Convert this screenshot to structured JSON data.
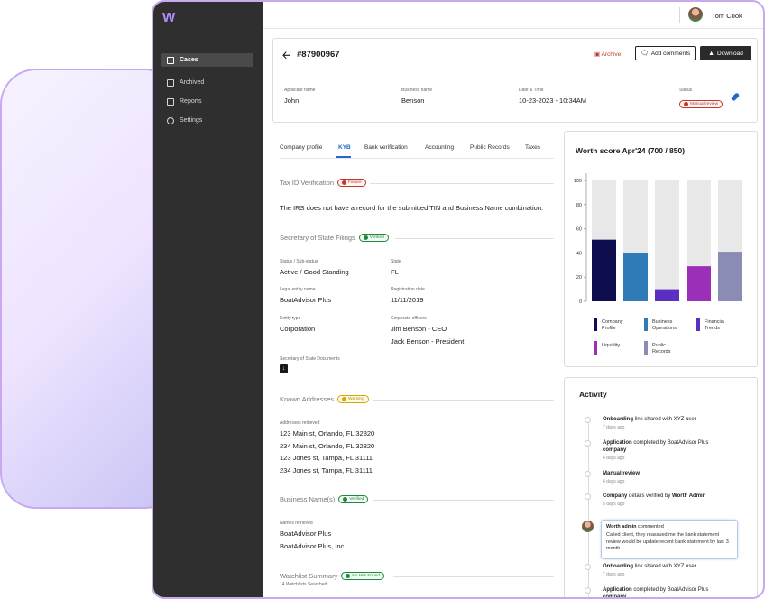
{
  "user": {
    "name": "Tom Cook"
  },
  "sidebar": {
    "items": [
      {
        "label": "Cases",
        "icon": "document-icon",
        "active": true
      },
      {
        "label": "Archived",
        "icon": "document-icon",
        "active": false
      },
      {
        "label": "Reports",
        "icon": "document-icon",
        "active": false
      },
      {
        "label": "Settings",
        "icon": "gear-icon",
        "active": false
      }
    ]
  },
  "case": {
    "id": "#87900967",
    "actions": {
      "archive": "Archive",
      "add_comments": "Add comments",
      "download": "Download"
    },
    "fields": {
      "applicant_label": "Applicant name",
      "applicant": "John",
      "business_label": "Business name",
      "business": "Benson",
      "date_label": "Date & Time",
      "date": "10-23-2023 - 10:34AM",
      "status_label": "Status",
      "status": "Manual review"
    }
  },
  "tabs": [
    "Company profile",
    "KYB",
    "Bank verification",
    "Accounting",
    "Public Records",
    "Taxes"
  ],
  "kyb": {
    "tax_id": {
      "title": "Tax ID Verification",
      "badge": "Failure",
      "message": "The IRS does not have a record for the submitted TIN and Business Name combination."
    },
    "sos": {
      "title": "Secretary of State Filings",
      "badge": "Verified",
      "status_label": "Status / Sub-status",
      "status": "Active / Good Standing",
      "state_label": "State",
      "state": "FL",
      "legal_label": "Legal entity name",
      "legal": "BoatAdvisor Plus",
      "reg_label": "Registration date",
      "reg": "11/11/2019",
      "entity_label": "Entity type",
      "entity": "Corporation",
      "officers_label": "Corporate officers",
      "officer1": "Jim Benson - CEO",
      "officer2": "Jack Benson - President",
      "docs_label": "Secretary of State Documents"
    },
    "addresses": {
      "title": "Known Addresses",
      "badge": "Warning",
      "label": "Addresses retrieved",
      "items": [
        "123 Main st, Orlando, FL 32820",
        "234 Main st, Orlando, FL 32820",
        "123 Jones st, Tampa, FL 31111",
        "234 Jones st, Tampa, FL 31111"
      ]
    },
    "names": {
      "title": "Business Name(s)",
      "badge": "Verified",
      "label": "Names retrieved",
      "items": [
        "BoatAdvisor Plus",
        "BoatAdvisor Plus, Inc."
      ]
    },
    "watchlist": {
      "title": "Watchlist Summary",
      "badge": "No Hits Found",
      "sub": "14 Watchlists Searched"
    }
  },
  "worth": {
    "title": "Worth score Apr'24 (700 / 850)"
  },
  "chart_data": {
    "type": "bar",
    "categories": [
      "Company Profile",
      "Business Operations",
      "Financial Trends",
      "Liquidity",
      "Public Records"
    ],
    "values": [
      51,
      40,
      10,
      29,
      41
    ],
    "max_values": [
      100,
      100,
      100,
      100,
      100
    ],
    "colors": [
      "#0d0d4f",
      "#2e7bb8",
      "#5b2fbf",
      "#9b2fb8",
      "#8a8cb4"
    ],
    "ylim": [
      0,
      100
    ],
    "yticks": [
      0,
      20,
      40,
      60,
      80,
      100
    ],
    "legend": [
      {
        "line1": "Company",
        "line2": "Profile"
      },
      {
        "line1": "Business",
        "line2": "Operations"
      },
      {
        "line1": "Financial",
        "line2": "Trends"
      },
      {
        "line1": "Liquidity",
        "line2": ""
      },
      {
        "line1": "Public",
        "line2": "Records"
      }
    ],
    "legend_placement": "bottom"
  },
  "activity": {
    "title": "Activity",
    "items": [
      {
        "bold": "Onboarding",
        "rest": " link shared with XYZ user",
        "time": "7 days ago"
      },
      {
        "bold": "Application",
        "rest": " completed by BoatAdvisor Plus ",
        "bold2": "company",
        "time": "6 days ago"
      },
      {
        "bold": "Manual review",
        "rest": "",
        "time": "6 days ago"
      },
      {
        "bold": "Company",
        "rest": " details verified by ",
        "bold2": "Worth Admin",
        "time": "5 days ago"
      },
      {
        "bold": "Onboarding",
        "rest": " link shared with XYZ user",
        "time": "7 days ago"
      },
      {
        "bold": "Application",
        "rest": " completed by BoatAdvisor Plus ",
        "bold2": "company",
        "time": ""
      }
    ],
    "comment": {
      "author": "Worth admin",
      "verb": " commented",
      "body": "Called client, they reassued me the bank statement review would be update recent bank statement by last 3 month"
    }
  }
}
